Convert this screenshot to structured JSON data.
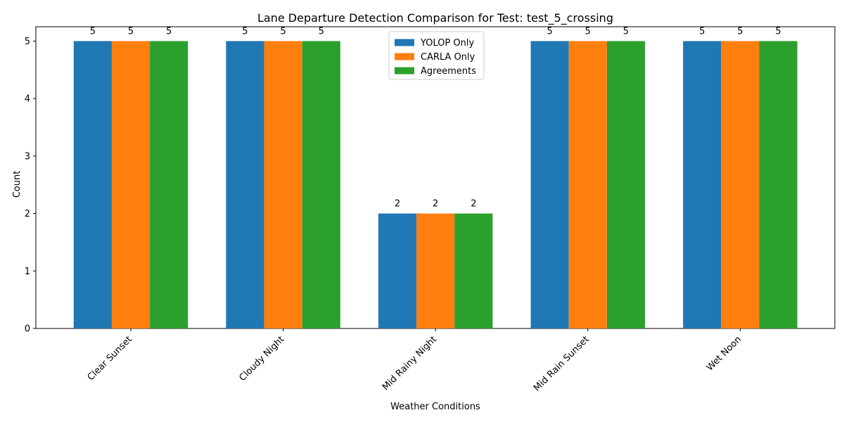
{
  "chart_data": {
    "type": "bar",
    "title": "Lane Departure Detection Comparison for Test: test_5_crossing",
    "xlabel": "Weather Conditions",
    "ylabel": "Count",
    "categories": [
      "Clear Sunset",
      "Cloudy Night",
      "Mid Rainy Night",
      "Mid Rain Sunset",
      "Wet Noon"
    ],
    "series": [
      {
        "name": "YOLOP Only",
        "color": "#1f77b4",
        "values": [
          5,
          5,
          2,
          5,
          5
        ]
      },
      {
        "name": "CARLA Only",
        "color": "#ff7f0e",
        "values": [
          5,
          5,
          2,
          5,
          5
        ]
      },
      {
        "name": "Agreements",
        "color": "#2ca02c",
        "values": [
          5,
          5,
          2,
          5,
          5
        ]
      }
    ],
    "ylim": [
      0,
      5.25
    ],
    "yticks": [
      0,
      1,
      2,
      3,
      4,
      5
    ],
    "grid": false,
    "legend_position": "top-center",
    "x_tick_rotation_deg": 45
  }
}
